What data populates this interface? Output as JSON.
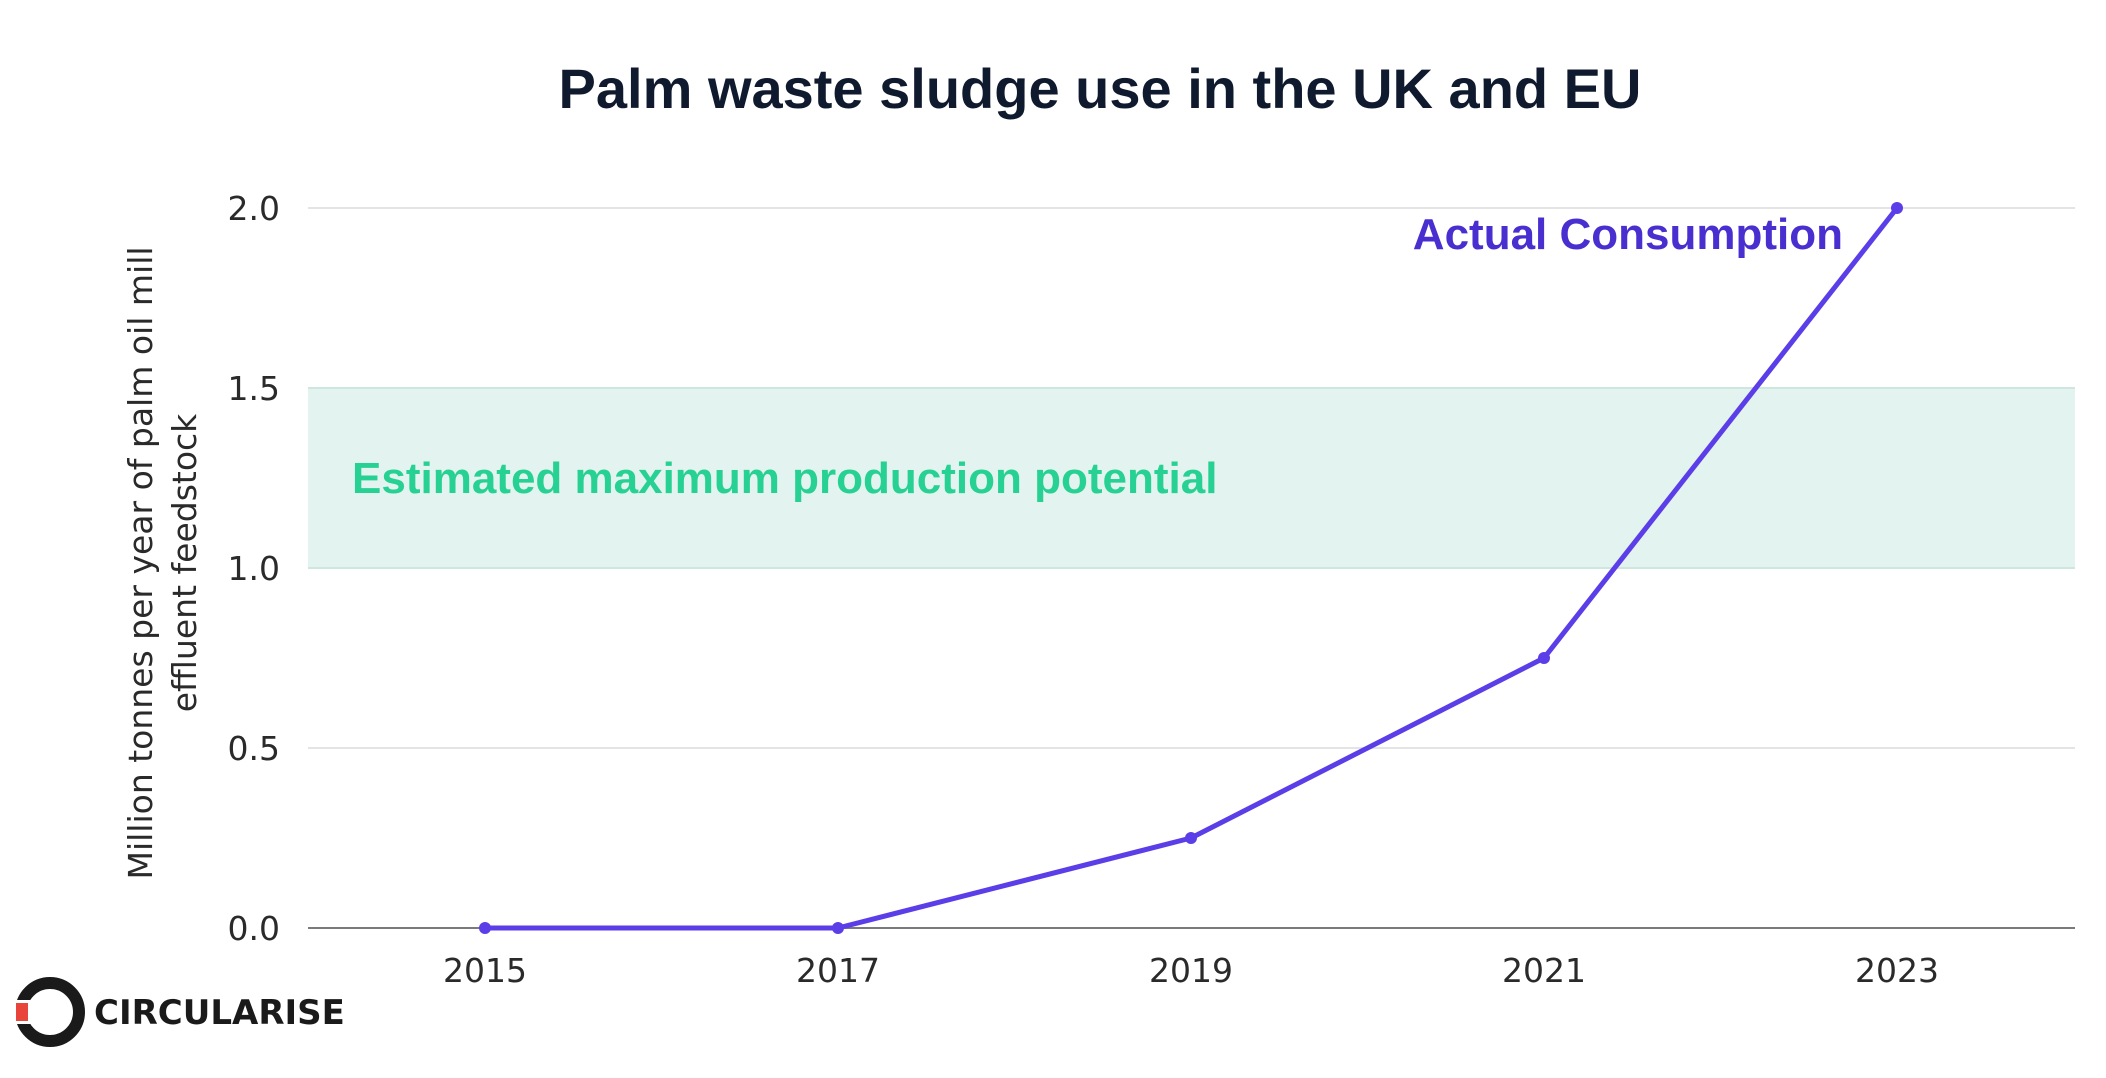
{
  "chart_data": {
    "type": "line",
    "title": "Palm waste sludge use in the UK and EU",
    "xlabel": "",
    "ylabel_lines": [
      "Million tonnes per year of palm oil mill",
      "effluent feedstock"
    ],
    "categories": [
      "2015",
      "2017",
      "2019",
      "2021",
      "2023"
    ],
    "yticks": [
      "0.0",
      "0.5",
      "1.0",
      "1.5",
      "2.0"
    ],
    "ylim": [
      0,
      2.0
    ],
    "grid": true,
    "series": [
      {
        "name": "Actual Consumption",
        "values": [
          0,
          0,
          0.25,
          0.75,
          2.0
        ],
        "color": "#5b3ee8"
      }
    ],
    "band": {
      "label": "Estimated maximum production potential",
      "range": [
        1.0,
        1.5
      ],
      "fill_color": "#e3f3ef",
      "edge_color": "#cfe6df",
      "label_color": "#27d193"
    }
  },
  "logo": {
    "text": "CIRCULARISE",
    "ring_color": "#1a1a1a",
    "accent_color": "#e8443a"
  },
  "colors": {
    "title": "#101a2e",
    "grid": "#e4e4e4",
    "axis": "#7a7a7a",
    "series_label": "#4a2fd0"
  }
}
